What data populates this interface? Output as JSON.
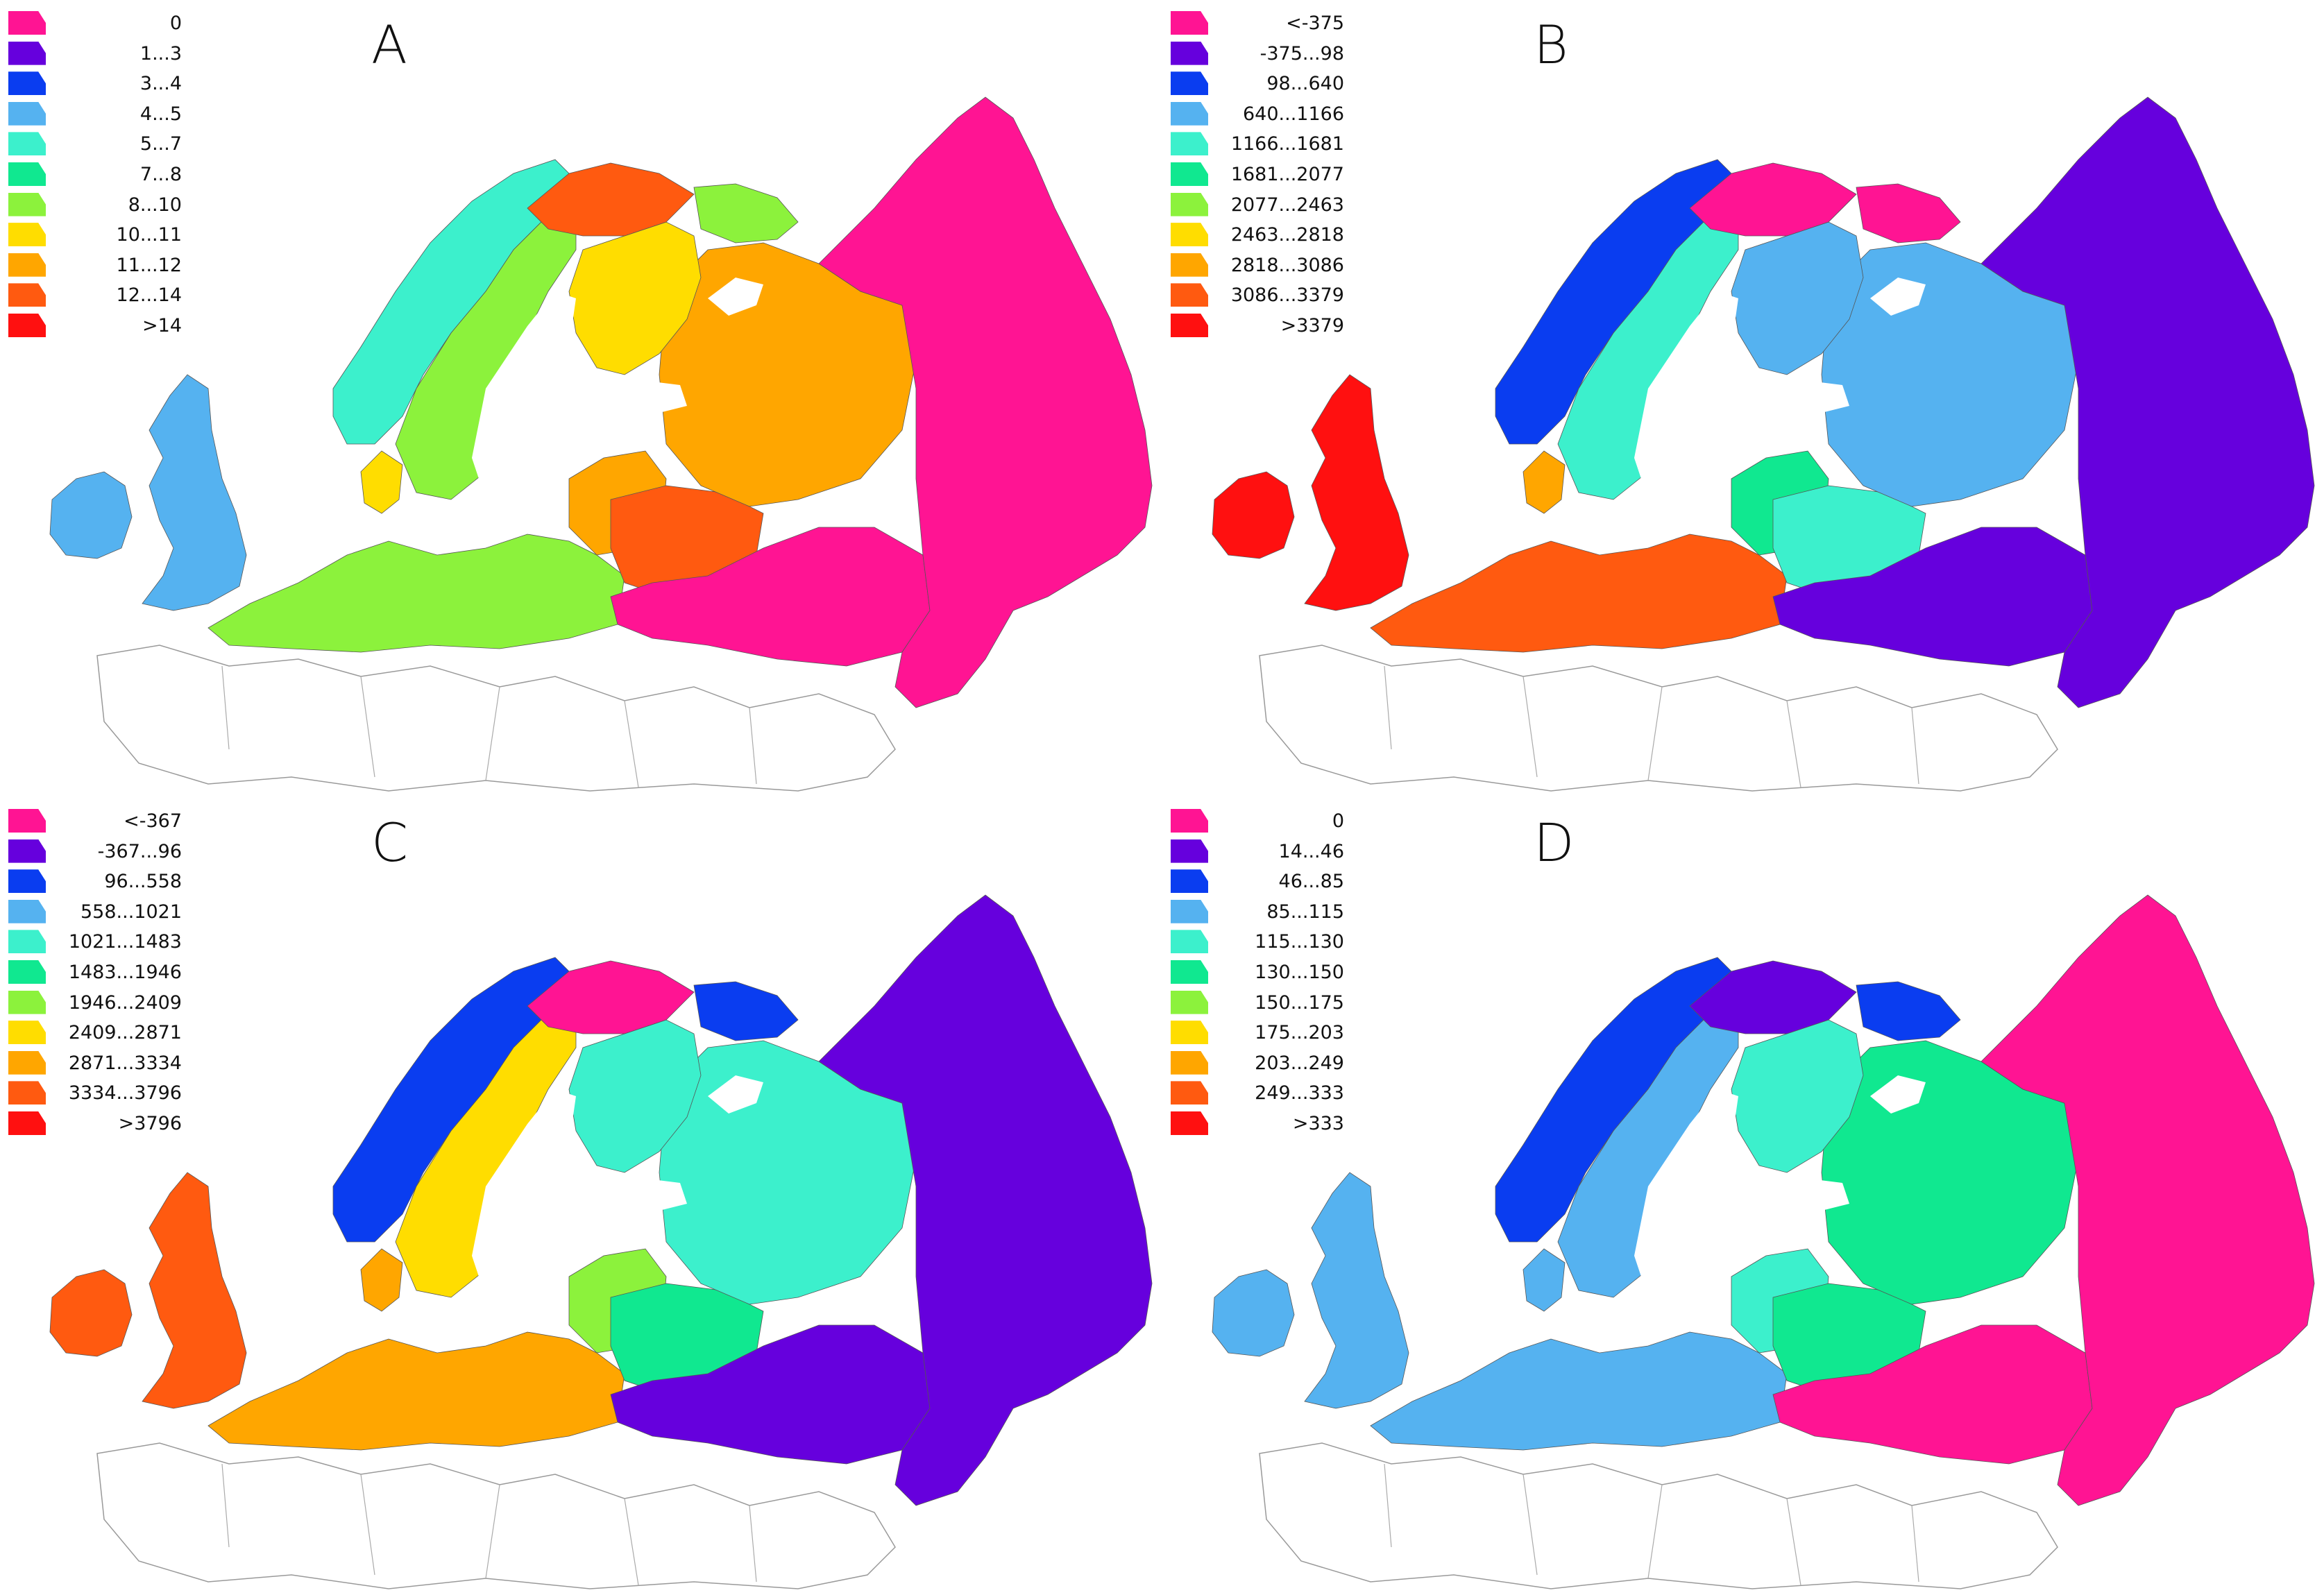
{
  "palette": [
    "#ff1493",
    "#6600dd",
    "#0a3df0",
    "#55b2f0",
    "#3cf0cc",
    "#10e890",
    "#8cf23c",
    "#ffdd00",
    "#ffa600",
    "#ff5a10",
    "#ff1010"
  ],
  "panels": [
    {
      "letter": "A",
      "legend": [
        "0",
        "1...3",
        "3...4",
        "4...5",
        "5...7",
        "7...8",
        "8...10",
        "10...11",
        "11...12",
        "12...14",
        ">14"
      ],
      "colors": {
        "uk": "#55b2f0",
        "ireland": "#55b2f0",
        "norway": "#3cf0cc",
        "sweden": "#8cf23c",
        "finland": "#ffdd00",
        "lapland": "#ff5a10",
        "kola": "#8cf23c",
        "baltic": "#ffa600",
        "belarus": "#ff5a10",
        "west_europe": "#8cf23c",
        "denmark": "#ffdd00",
        "russia_north": "#ffa600",
        "russia_south": "#ff1493",
        "russia_east": "#ff1493"
      }
    },
    {
      "letter": "B",
      "legend": [
        "<-375",
        "-375...98",
        "98...640",
        "640...1166",
        "1166...1681",
        "1681...2077",
        "2077...2463",
        "2463...2818",
        "2818...3086",
        "3086...3379",
        ">3379"
      ],
      "colors": {
        "uk": "#ff1010",
        "ireland": "#ff1010",
        "norway": "#0a3df0",
        "sweden": "#3cf0cc",
        "finland": "#55b2f0",
        "lapland": "#ff1493",
        "kola": "#ff1493",
        "baltic": "#10e890",
        "belarus": "#3cf0cc",
        "west_europe": "#ff5a10",
        "denmark": "#ffa600",
        "russia_north": "#55b2f0",
        "russia_south": "#6600dd",
        "russia_east": "#6600dd"
      }
    },
    {
      "letter": "C",
      "legend": [
        "<-367",
        "-367...96",
        "96...558",
        "558...1021",
        "1021...1483",
        "1483...1946",
        "1946...2409",
        "2409...2871",
        "2871...3334",
        "3334...3796",
        ">3796"
      ],
      "colors": {
        "uk": "#ff5a10",
        "ireland": "#ff5a10",
        "norway": "#0a3df0",
        "sweden": "#ffdd00",
        "finland": "#3cf0cc",
        "lapland": "#ff1493",
        "kola": "#0a3df0",
        "baltic": "#8cf23c",
        "belarus": "#10e890",
        "west_europe": "#ffa600",
        "denmark": "#ffa600",
        "russia_north": "#3cf0cc",
        "russia_south": "#6600dd",
        "russia_east": "#6600dd"
      }
    },
    {
      "letter": "D",
      "legend": [
        "0",
        "14...46",
        "46...85",
        "85...115",
        "115...130",
        "130...150",
        "150...175",
        "175...203",
        "203...249",
        "249...333",
        ">333"
      ],
      "colors": {
        "uk": "#55b2f0",
        "ireland": "#55b2f0",
        "norway": "#0a3df0",
        "sweden": "#55b2f0",
        "finland": "#3cf0cc",
        "lapland": "#6600dd",
        "kola": "#0a3df0",
        "baltic": "#3cf0cc",
        "belarus": "#10e890",
        "west_europe": "#55b2f0",
        "denmark": "#55b2f0",
        "russia_north": "#10e890",
        "russia_south": "#ff1493",
        "russia_east": "#ff1493"
      }
    }
  ]
}
